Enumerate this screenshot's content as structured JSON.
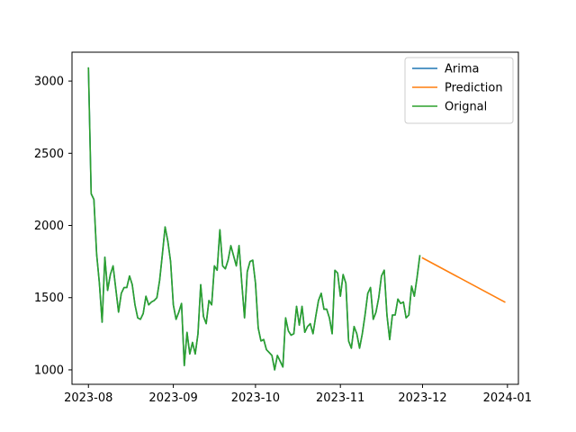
{
  "chart_data": {
    "type": "line",
    "title": "",
    "xlabel": "",
    "ylabel": "",
    "x_axis": "date",
    "xlim": [
      "2023-07-26",
      "2024-01-05"
    ],
    "ylim": [
      900,
      3200
    ],
    "x_ticks": [
      "2023-08",
      "2023-09",
      "2023-10",
      "2023-11",
      "2023-12",
      "2024-01"
    ],
    "y_ticks": [
      1000,
      1500,
      2000,
      2500,
      3000
    ],
    "grid": false,
    "legend": {
      "placement": "top-right"
    },
    "series": [
      {
        "name": "Arima",
        "color": "#1f77b4",
        "points": [
          [
            "2023-08-01",
            3090
          ],
          [
            "2023-08-02",
            2220
          ],
          [
            "2023-08-03",
            2180
          ],
          [
            "2023-08-04",
            1800
          ],
          [
            "2023-08-05",
            1600
          ],
          [
            "2023-08-06",
            1330
          ],
          [
            "2023-08-07",
            1780
          ],
          [
            "2023-08-08",
            1550
          ],
          [
            "2023-08-09",
            1660
          ],
          [
            "2023-08-10",
            1720
          ],
          [
            "2023-08-11",
            1560
          ],
          [
            "2023-08-12",
            1400
          ],
          [
            "2023-08-13",
            1530
          ],
          [
            "2023-08-14",
            1570
          ],
          [
            "2023-08-15",
            1570
          ],
          [
            "2023-08-16",
            1650
          ],
          [
            "2023-08-17",
            1590
          ],
          [
            "2023-08-18",
            1450
          ],
          [
            "2023-08-19",
            1360
          ],
          [
            "2023-08-20",
            1350
          ],
          [
            "2023-08-21",
            1390
          ],
          [
            "2023-08-22",
            1510
          ],
          [
            "2023-08-23",
            1450
          ],
          [
            "2023-08-24",
            1470
          ],
          [
            "2023-08-25",
            1480
          ],
          [
            "2023-08-26",
            1500
          ],
          [
            "2023-08-27",
            1620
          ],
          [
            "2023-08-28",
            1800
          ],
          [
            "2023-08-29",
            1990
          ],
          [
            "2023-08-30",
            1890
          ],
          [
            "2023-08-31",
            1750
          ],
          [
            "2023-09-01",
            1450
          ],
          [
            "2023-09-02",
            1350
          ],
          [
            "2023-09-03",
            1400
          ],
          [
            "2023-09-04",
            1460
          ],
          [
            "2023-09-05",
            1030
          ],
          [
            "2023-09-06",
            1260
          ],
          [
            "2023-09-07",
            1110
          ],
          [
            "2023-09-08",
            1190
          ],
          [
            "2023-09-09",
            1110
          ],
          [
            "2023-09-10",
            1250
          ],
          [
            "2023-09-11",
            1590
          ],
          [
            "2023-09-12",
            1370
          ],
          [
            "2023-09-13",
            1320
          ],
          [
            "2023-09-14",
            1480
          ],
          [
            "2023-09-15",
            1450
          ],
          [
            "2023-09-16",
            1720
          ],
          [
            "2023-09-17",
            1690
          ],
          [
            "2023-09-18",
            1970
          ],
          [
            "2023-09-19",
            1720
          ],
          [
            "2023-09-20",
            1700
          ],
          [
            "2023-09-21",
            1760
          ],
          [
            "2023-09-22",
            1860
          ],
          [
            "2023-09-23",
            1790
          ],
          [
            "2023-09-24",
            1720
          ],
          [
            "2023-09-25",
            1860
          ],
          [
            "2023-09-26",
            1600
          ],
          [
            "2023-09-27",
            1360
          ],
          [
            "2023-09-28",
            1680
          ],
          [
            "2023-09-29",
            1750
          ],
          [
            "2023-09-30",
            1760
          ],
          [
            "2023-10-01",
            1600
          ],
          [
            "2023-10-02",
            1290
          ],
          [
            "2023-10-03",
            1200
          ],
          [
            "2023-10-04",
            1210
          ],
          [
            "2023-10-05",
            1140
          ],
          [
            "2023-10-06",
            1120
          ],
          [
            "2023-10-07",
            1100
          ],
          [
            "2023-10-08",
            1000
          ],
          [
            "2023-10-09",
            1100
          ],
          [
            "2023-10-10",
            1060
          ],
          [
            "2023-10-11",
            1020
          ],
          [
            "2023-10-12",
            1360
          ],
          [
            "2023-10-13",
            1270
          ],
          [
            "2023-10-14",
            1240
          ],
          [
            "2023-10-15",
            1250
          ],
          [
            "2023-10-16",
            1440
          ],
          [
            "2023-10-17",
            1310
          ],
          [
            "2023-10-18",
            1440
          ],
          [
            "2023-10-19",
            1260
          ],
          [
            "2023-10-20",
            1300
          ],
          [
            "2023-10-21",
            1320
          ],
          [
            "2023-10-22",
            1250
          ],
          [
            "2023-10-23",
            1370
          ],
          [
            "2023-10-24",
            1480
          ],
          [
            "2023-10-25",
            1530
          ],
          [
            "2023-10-26",
            1420
          ],
          [
            "2023-10-27",
            1420
          ],
          [
            "2023-10-28",
            1360
          ],
          [
            "2023-10-29",
            1250
          ],
          [
            "2023-10-30",
            1690
          ],
          [
            "2023-10-31",
            1670
          ],
          [
            "2023-11-01",
            1510
          ],
          [
            "2023-11-02",
            1660
          ],
          [
            "2023-11-03",
            1600
          ],
          [
            "2023-11-04",
            1200
          ],
          [
            "2023-11-05",
            1150
          ],
          [
            "2023-11-06",
            1300
          ],
          [
            "2023-11-07",
            1250
          ],
          [
            "2023-11-08",
            1150
          ],
          [
            "2023-11-09",
            1250
          ],
          [
            "2023-11-10",
            1380
          ],
          [
            "2023-11-11",
            1530
          ],
          [
            "2023-11-12",
            1570
          ],
          [
            "2023-11-13",
            1350
          ],
          [
            "2023-11-14",
            1400
          ],
          [
            "2023-11-15",
            1500
          ],
          [
            "2023-11-16",
            1650
          ],
          [
            "2023-11-17",
            1690
          ],
          [
            "2023-11-18",
            1380
          ],
          [
            "2023-11-19",
            1210
          ],
          [
            "2023-11-20",
            1380
          ],
          [
            "2023-11-21",
            1380
          ],
          [
            "2023-11-22",
            1490
          ],
          [
            "2023-11-23",
            1460
          ],
          [
            "2023-11-24",
            1470
          ],
          [
            "2023-11-25",
            1360
          ],
          [
            "2023-11-26",
            1380
          ],
          [
            "2023-11-27",
            1580
          ],
          [
            "2023-11-28",
            1510
          ],
          [
            "2023-11-29",
            1640
          ],
          [
            "2023-11-30",
            1790
          ]
        ]
      },
      {
        "name": "Prediction",
        "color": "#ff7f0e",
        "points": [
          [
            "2023-12-01",
            1775
          ],
          [
            "2023-12-31",
            1470
          ]
        ]
      },
      {
        "name": "Orignal",
        "color": "#2ca02c",
        "same_values_as": "Arima"
      }
    ]
  }
}
